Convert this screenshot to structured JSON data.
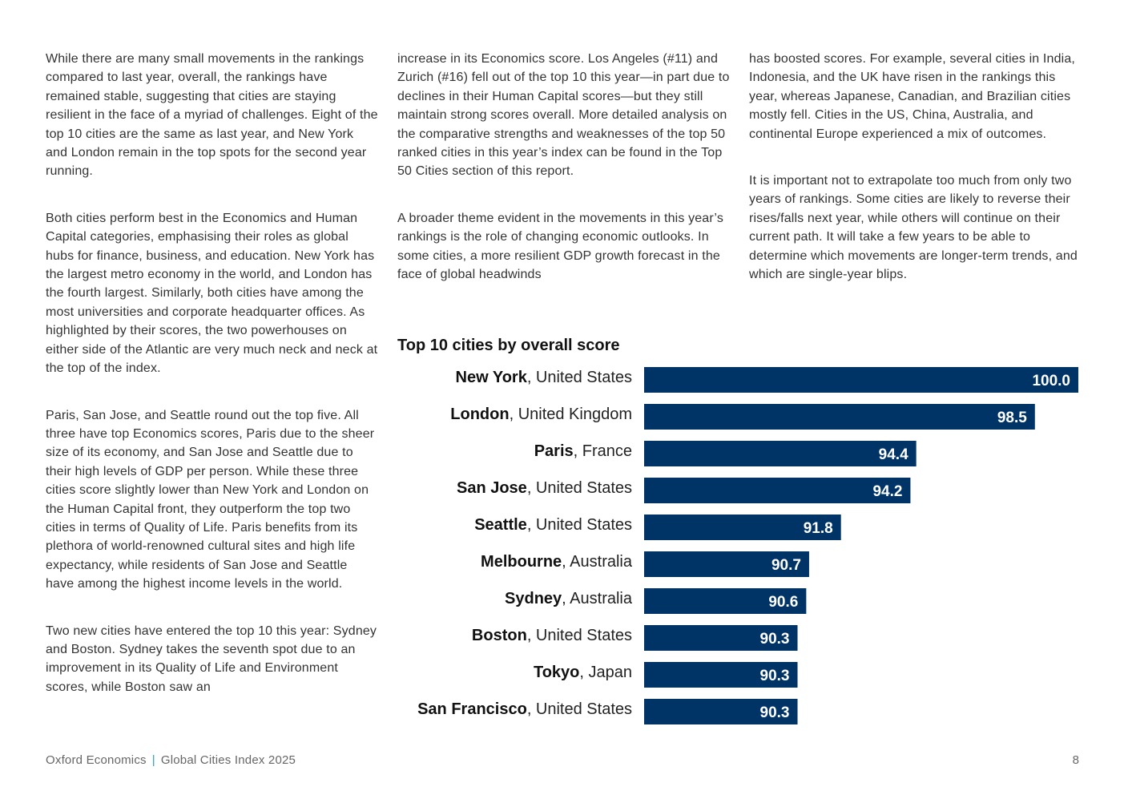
{
  "body": {
    "col1": [
      "While there are many small movements in the rankings compared to last year, overall, the rankings have remained stable, suggesting that cities are staying resilient in the face of a myriad of challenges. Eight of the top 10 cities are the same as last year, and New York and London remain in the top spots for the second year running.",
      "Both cities perform best in the Economics and Human Capital categories, emphasising their roles as global hubs for finance, business, and education. New York has the largest metro economy in the world, and London has the fourth largest. Similarly, both cities have among the most universities and corporate headquarter offices. As highlighted by their scores, the two powerhouses on either side of the Atlantic are very much neck and neck at the top of the index.",
      "Paris, San Jose, and Seattle round out the top five. All three have top Economics scores, Paris due to the sheer size of its economy, and San Jose and Seattle due to their high levels of GDP per person. While these three cities score slightly lower than New York and London on the Human Capital front, they outperform the top two cities in terms of Quality of Life. Paris benefits from its plethora of world-renowned cultural sites and high life expectancy, while residents of San Jose and Seattle have among the highest income levels in the world.",
      "Two new cities have entered the top 10 this year: Sydney and Boston. Sydney takes the seventh spot due to an improvement in its Quality of Life and Environment scores, while Boston saw an"
    ],
    "col2": [
      "increase in its Economics score. Los Angeles (#11) and Zurich (#16) fell out of the top 10 this year—in part due to declines in their Human Capital scores—but they still maintain strong scores overall. More detailed analysis on the comparative strengths and weaknesses of the top 50 ranked cities in this year’s index can be found in the Top 50 Cities section of this report.",
      "A broader theme evident in the movements in this year’s rankings is the role of changing economic outlooks. In some cities, a more resilient GDP growth forecast in the face of global headwinds"
    ],
    "col3": [
      "has boosted scores. For example, several cities in India, Indonesia, and the UK have risen in the rankings this year, whereas Japanese, Canadian, and Brazilian cities mostly fell. Cities in the US, China, Australia, and continental Europe experienced a mix of outcomes.",
      "It is important not to extrapolate too much from only two years of rankings. Some cities are likely to reverse their rises/falls next year, while others will continue on their current path. It will take a few years to be able to determine which movements are longer-term trends, and which are single-year blips."
    ]
  },
  "chart_data": {
    "type": "bar",
    "orientation": "horizontal",
    "title": "Top 10 cities by overall score",
    "categories": [
      {
        "city": "New York",
        "country": "United States"
      },
      {
        "city": "London",
        "country": "United Kingdom"
      },
      {
        "city": "Paris",
        "country": "France"
      },
      {
        "city": "San Jose",
        "country": "United States"
      },
      {
        "city": "Seattle",
        "country": "United States"
      },
      {
        "city": "Melbourne",
        "country": "Australia"
      },
      {
        "city": "Sydney",
        "country": "Australia"
      },
      {
        "city": "Boston",
        "country": "United States"
      },
      {
        "city": "Tokyo",
        "country": "Japan"
      },
      {
        "city": "San Francisco",
        "country": "United States"
      }
    ],
    "values": [
      100.0,
      98.5,
      94.4,
      94.2,
      91.8,
      90.7,
      90.6,
      90.3,
      90.3,
      90.3
    ],
    "value_labels": [
      "100.0",
      "98.5",
      "94.4",
      "94.2",
      "91.8",
      "90.7",
      "90.6",
      "90.3",
      "90.3",
      "90.3"
    ],
    "xlim": [
      85,
      100
    ],
    "bar_color": "#003466",
    "label_color": "#ffffff",
    "grid": false,
    "legend": "none"
  },
  "footer": {
    "publisher": "Oxford Economics",
    "separator": "|",
    "publication": "Global Cities Index 2025",
    "page_number": "8"
  },
  "colors": {
    "accent_separator": "#2a9fd6",
    "text": "#333333"
  }
}
